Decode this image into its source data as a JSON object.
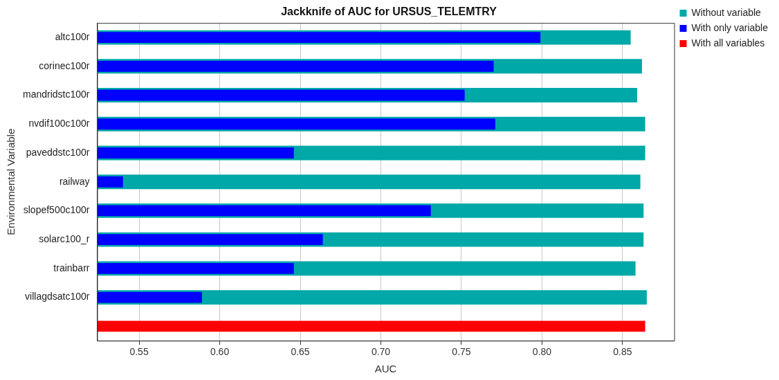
{
  "chart_data": {
    "type": "bar",
    "orientation": "horizontal",
    "title": "Jackknife of AUC for URSUS_TELEMTRY",
    "xlabel": "AUC",
    "ylabel": "Environmental Variable",
    "categories": [
      "altc100r",
      "corinec100r",
      "mandridstc100r",
      "nvdif100c100r",
      "paveddstc100r",
      "railway",
      "slopef500c100r",
      "solarc100_r",
      "trainbarr",
      "villagdsatc100r",
      null
    ],
    "series": [
      {
        "name": "Without variable",
        "color": "#00a8a8",
        "values": [
          0.855,
          0.862,
          0.859,
          0.864,
          0.864,
          0.861,
          0.863,
          0.863,
          0.858,
          0.865,
          null
        ]
      },
      {
        "name": "With only variable",
        "color": "#0000ff",
        "values": [
          0.799,
          0.77,
          0.752,
          0.771,
          0.646,
          0.54,
          0.731,
          0.664,
          0.646,
          0.589,
          null
        ]
      },
      {
        "name": "With all variables",
        "color": "#ff0000",
        "values": [
          null,
          null,
          null,
          null,
          null,
          null,
          null,
          null,
          null,
          null,
          0.864
        ]
      }
    ],
    "xlim": [
      0.524,
      0.882
    ],
    "xticks": [
      {
        "value": 0.55,
        "label": "0.55"
      },
      {
        "value": 0.6,
        "label": "0.60"
      },
      {
        "value": 0.65,
        "label": "0.65"
      },
      {
        "value": 0.7,
        "label": "0.70"
      },
      {
        "value": 0.75,
        "label": "0.75"
      },
      {
        "value": 0.8,
        "label": "0.80"
      },
      {
        "value": 0.85,
        "label": "0.85"
      }
    ],
    "grid": "x",
    "legend": "top right"
  }
}
